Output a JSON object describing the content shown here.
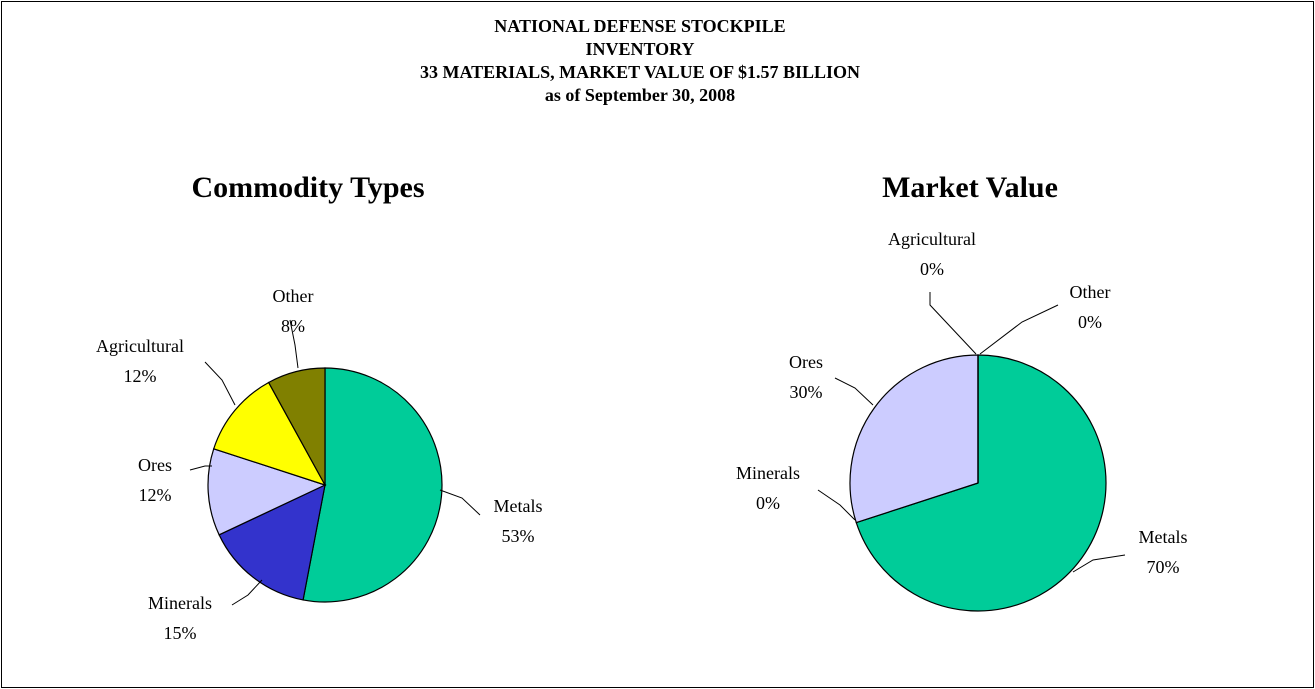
{
  "header": {
    "lines": [
      "NATIONAL DEFENSE STOCKPILE",
      "INVENTORY",
      "33 MATERIALS, MARKET VALUE OF $1.57 BILLION",
      "as of September 30, 2008"
    ]
  },
  "chart_data": [
    {
      "type": "pie",
      "title": "Commodity Types",
      "categories": [
        "Metals",
        "Minerals",
        "Ores",
        "Agricultural",
        "Other"
      ],
      "values": [
        53,
        15,
        12,
        12,
        8
      ],
      "value_labels": [
        "53%",
        "15%",
        "12%",
        "12%",
        "8%"
      ],
      "colors": [
        "#00cc99",
        "#3333cc",
        "#ccccff",
        "#ffff00",
        "#808000"
      ]
    },
    {
      "type": "pie",
      "title": "Market Value",
      "categories": [
        "Metals",
        "Minerals",
        "Ores",
        "Agricultural",
        "Other"
      ],
      "values": [
        70,
        0,
        30,
        0,
        0
      ],
      "value_labels": [
        "70%",
        "0%",
        "30%",
        "0%",
        "0%"
      ],
      "colors": [
        "#00cc99",
        "#3333cc",
        "#ccccff",
        "#ffff00",
        "#808000"
      ]
    }
  ]
}
